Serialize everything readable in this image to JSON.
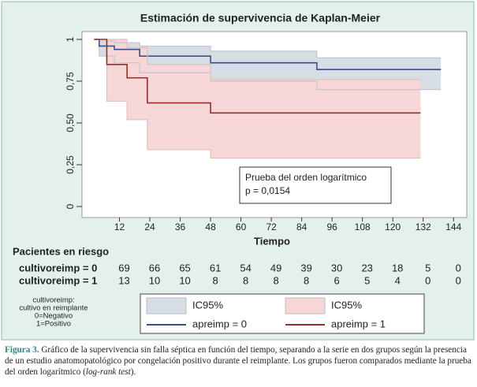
{
  "chart_data": {
    "type": "kaplan-meier",
    "title": "Estimación de supervivencia de Kaplan-Meier",
    "xlabel": "Tiempo",
    "xlim": [
      0,
      147
    ],
    "ylim": [
      0,
      1.06
    ],
    "xticks": [
      12,
      24,
      36,
      48,
      60,
      72,
      84,
      96,
      108,
      120,
      132,
      144
    ],
    "yticks": [
      0,
      {
        "value": 0.25,
        "label": "0,25"
      },
      {
        "value": 0.5,
        "label": "0,50"
      },
      {
        "value": 0.75,
        "label": "0,75"
      },
      1
    ],
    "series": [
      {
        "name": "apreimp = 0",
        "color": "#3d4f8a",
        "band_label": "IC95%",
        "band_color": "#d6dde5",
        "x": [
          2,
          4,
          10,
          20,
          48,
          90,
          139
        ],
        "values": [
          1,
          0.96,
          0.94,
          0.9,
          0.86,
          0.82,
          0.82
        ],
        "lower": [
          1,
          0.9,
          0.86,
          0.8,
          0.75,
          0.7,
          0.7
        ],
        "upper": [
          1,
          0.99,
          0.98,
          0.96,
          0.93,
          0.89,
          0.89
        ]
      },
      {
        "name": "apreimp = 1",
        "color": "#9b2c2c",
        "band_label": "IC95%",
        "band_color": "#f6d6d6",
        "x": [
          2,
          7,
          15,
          23,
          48,
          131
        ],
        "values": [
          1,
          0.85,
          0.77,
          0.62,
          0.56,
          0.56
        ],
        "lower": [
          1,
          0.63,
          0.52,
          0.34,
          0.29,
          0.29
        ],
        "upper": [
          1,
          1,
          0.95,
          0.85,
          0.76,
          0.76
        ]
      }
    ],
    "annotation": [
      "Prueba del orden logarítmico",
      "p = 0,0154"
    ],
    "risk_table": {
      "title": "Pacientes en riesgo",
      "rows": [
        {
          "label": "cultivoreimp = 0",
          "values": [
            69,
            66,
            65,
            61,
            54,
            49,
            39,
            30,
            23,
            18,
            5,
            0
          ]
        },
        {
          "label": "cultivoreimp = 1",
          "values": [
            13,
            10,
            10,
            8,
            8,
            8,
            8,
            6,
            5,
            4,
            0,
            0
          ]
        }
      ]
    },
    "note": [
      "cultivoreimp:",
      "cultivo en reimplante",
      "0=Negativo",
      "1=Positivo"
    ]
  },
  "caption": {
    "label": "Figura 3.",
    "text": "Gráfico de la supervivencia sin falla séptica en función del tiempo, separando a la serie en dos grupos según la presencia de un estudio anatomopatológico por congelación positivo durante el reimplante. Los grupos fueron comparados mediante la prueba del orden logarítmico (",
    "italic": "log-rank test",
    "end": ")."
  }
}
